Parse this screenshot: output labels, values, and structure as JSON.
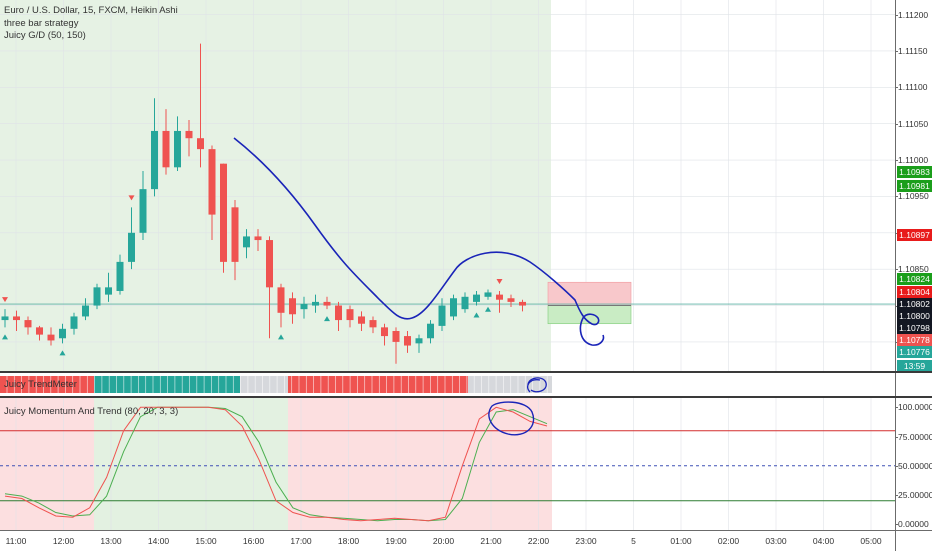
{
  "main_legend": {
    "symbol_line": "Euro / U.S. Dollar, 15, FXCM, Heikin Ashi",
    "study_1": "three bar strategy",
    "study_2": "Juicy G/D (50, 150)"
  },
  "trend_meter_label": "Juicy TrendMeter",
  "oscillator_label": "Juicy Momentum And Trend (80, 20, 3, 3)",
  "price_axis_ticks": [
    "1.11200",
    "1.11150",
    "1.11100",
    "1.11050",
    "1.11000",
    "1.10950",
    "1.10900",
    "1.10850",
    "1.10800",
    "1.10750"
  ],
  "price_tags": [
    {
      "text": "1.10983",
      "price": 1.10983,
      "color": "#1b9e1b"
    },
    {
      "text": "1.10981",
      "price": 1.10965,
      "color": "#1b9e1b"
    },
    {
      "text": "1.10897",
      "price": 1.10897,
      "color": "#e81b1b"
    },
    {
      "text": "1.10824",
      "price": 1.10836,
      "color": "#1b9e1b"
    },
    {
      "text": "1.10804",
      "price": 1.10818,
      "color": "#e81b1b"
    },
    {
      "text": "1.10802",
      "price": 1.10802,
      "color": "#131722"
    },
    {
      "text": "1.10800",
      "price": 1.10786,
      "color": "#131722"
    },
    {
      "text": "1.10798",
      "price": 1.10769,
      "color": "#131722"
    },
    {
      "text": "1.10778",
      "price": 1.10752,
      "color": "#ef5350"
    },
    {
      "text": "1.10776",
      "price": 1.10736,
      "color": "#26a69a"
    },
    {
      "text": "13:59",
      "price": 1.10717,
      "color": "#26a69a"
    },
    {
      "text": "1.10771",
      "price": 1.10697,
      "color": "#131722"
    }
  ],
  "osc_axis_ticks": [
    {
      "text": "100.00000",
      "v": 100
    },
    {
      "text": "75.00000",
      "v": 75
    },
    {
      "text": "50.00000",
      "v": 50
    },
    {
      "text": "25.00000",
      "v": 25
    },
    {
      "text": "0.00000",
      "v": 0
    }
  ],
  "time_axis_ticks": [
    "11:00",
    "12:00",
    "13:00",
    "14:00",
    "15:00",
    "16:00",
    "17:00",
    "18:00",
    "19:00",
    "20:00",
    "21:00",
    "22:00",
    "23:00",
    "5",
    "01:00",
    "02:00",
    "03:00",
    "04:00",
    "05:00"
  ],
  "colors": {
    "bull": "#26a69a",
    "bear": "#ef5350",
    "session_bg": "#e6f2e4",
    "osc_bear_bg": "#fcdfe0",
    "osc_bull_bg": "#e3f1e1",
    "drawing": "#1a24b8"
  },
  "chart_data": {
    "type": "candlestick",
    "title": "Euro / U.S. Dollar, 15, FXCM, Heikin Ashi",
    "ylim": [
      1.1071,
      1.1122
    ],
    "candles": [
      {
        "o": 1.1078,
        "c": 1.10785,
        "h": 1.10795,
        "l": 1.1077
      },
      {
        "o": 1.10785,
        "c": 1.1078,
        "h": 1.10793,
        "l": 1.10765
      },
      {
        "o": 1.1078,
        "c": 1.1077,
        "h": 1.10785,
        "l": 1.1076
      },
      {
        "o": 1.1077,
        "c": 1.1076,
        "h": 1.10772,
        "l": 1.10752
      },
      {
        "o": 1.1076,
        "c": 1.10752,
        "h": 1.1077,
        "l": 1.10745
      },
      {
        "o": 1.10755,
        "c": 1.10768,
        "h": 1.10775,
        "l": 1.10748
      },
      {
        "o": 1.10768,
        "c": 1.10785,
        "h": 1.1079,
        "l": 1.1076
      },
      {
        "o": 1.10785,
        "c": 1.108,
        "h": 1.1081,
        "l": 1.1078
      },
      {
        "o": 1.108,
        "c": 1.10825,
        "h": 1.1083,
        "l": 1.10795
      },
      {
        "o": 1.10815,
        "c": 1.10825,
        "h": 1.10845,
        "l": 1.10805
      },
      {
        "o": 1.1082,
        "c": 1.1086,
        "h": 1.1087,
        "l": 1.10815
      },
      {
        "o": 1.1086,
        "c": 1.109,
        "h": 1.10935,
        "l": 1.1085
      },
      {
        "o": 1.109,
        "c": 1.1096,
        "h": 1.10985,
        "l": 1.1089
      },
      {
        "o": 1.1096,
        "c": 1.1104,
        "h": 1.11085,
        "l": 1.1095
      },
      {
        "o": 1.1104,
        "c": 1.1099,
        "h": 1.1107,
        "l": 1.1098
      },
      {
        "o": 1.1099,
        "c": 1.1104,
        "h": 1.1106,
        "l": 1.10985
      },
      {
        "o": 1.1104,
        "c": 1.1103,
        "h": 1.11055,
        "l": 1.11005
      },
      {
        "o": 1.1103,
        "c": 1.11015,
        "h": 1.1116,
        "l": 1.1099
      },
      {
        "o": 1.11015,
        "c": 1.10925,
        "h": 1.1102,
        "l": 1.1089
      },
      {
        "o": 1.10995,
        "c": 1.1086,
        "h": 1.10995,
        "l": 1.10845
      },
      {
        "o": 1.10935,
        "c": 1.1086,
        "h": 1.10945,
        "l": 1.10835
      },
      {
        "o": 1.1088,
        "c": 1.10895,
        "h": 1.10905,
        "l": 1.10865
      },
      {
        "o": 1.10895,
        "c": 1.1089,
        "h": 1.10905,
        "l": 1.10875
      },
      {
        "o": 1.1089,
        "c": 1.10825,
        "h": 1.10895,
        "l": 1.10755
      },
      {
        "o": 1.10825,
        "c": 1.1079,
        "h": 1.1083,
        "l": 1.1077
      },
      {
        "o": 1.1081,
        "c": 1.10788,
        "h": 1.10818,
        "l": 1.10775
      },
      {
        "o": 1.10795,
        "c": 1.10802,
        "h": 1.10812,
        "l": 1.10782
      },
      {
        "o": 1.108,
        "c": 1.10805,
        "h": 1.10815,
        "l": 1.1079
      },
      {
        "o": 1.10805,
        "c": 1.108,
        "h": 1.10812,
        "l": 1.10795
      },
      {
        "o": 1.108,
        "c": 1.1078,
        "h": 1.10805,
        "l": 1.10765
      },
      {
        "o": 1.10795,
        "c": 1.1078,
        "h": 1.108,
        "l": 1.1077
      },
      {
        "o": 1.10785,
        "c": 1.10775,
        "h": 1.10792,
        "l": 1.10765
      },
      {
        "o": 1.1078,
        "c": 1.1077,
        "h": 1.10785,
        "l": 1.10762
      },
      {
        "o": 1.1077,
        "c": 1.10758,
        "h": 1.10775,
        "l": 1.10745
      },
      {
        "o": 1.10765,
        "c": 1.1075,
        "h": 1.1077,
        "l": 1.1072
      },
      {
        "o": 1.10758,
        "c": 1.10745,
        "h": 1.10765,
        "l": 1.10735
      },
      {
        "o": 1.10748,
        "c": 1.10755,
        "h": 1.1076,
        "l": 1.10735
      },
      {
        "o": 1.10755,
        "c": 1.10775,
        "h": 1.1078,
        "l": 1.10748
      },
      {
        "o": 1.10772,
        "c": 1.108,
        "h": 1.1081,
        "l": 1.10765
      },
      {
        "o": 1.10785,
        "c": 1.1081,
        "h": 1.10815,
        "l": 1.1078
      },
      {
        "o": 1.10795,
        "c": 1.10812,
        "h": 1.10818,
        "l": 1.1079
      },
      {
        "o": 1.10805,
        "c": 1.10815,
        "h": 1.1082,
        "l": 1.108
      },
      {
        "o": 1.10812,
        "c": 1.10818,
        "h": 1.10822,
        "l": 1.10808
      },
      {
        "o": 1.10815,
        "c": 1.10808,
        "h": 1.1082,
        "l": 1.1079
      },
      {
        "o": 1.1081,
        "c": 1.10805,
        "h": 1.10815,
        "l": 1.10798
      },
      {
        "o": 1.10805,
        "c": 1.108,
        "h": 1.10808,
        "l": 1.10792
      }
    ],
    "signals_up": [
      0,
      5,
      24,
      28,
      41,
      42
    ],
    "signals_down": [
      0,
      11,
      43
    ],
    "horizontal_line_price": 1.10802,
    "position_tool": {
      "entry": 1.108,
      "target_top": 1.10832,
      "stop_bottom": 1.10775
    },
    "oscillator": {
      "ylim": [
        -5,
        108
      ],
      "levels": [
        80,
        50,
        20
      ],
      "line_a": [
        24,
        22,
        14,
        7,
        6,
        14,
        40,
        80,
        100,
        100,
        100,
        100,
        100,
        98,
        84,
        55,
        20,
        10,
        6,
        6,
        4,
        3,
        4,
        5,
        4,
        3,
        6,
        50,
        90,
        100,
        96,
        88,
        84
      ],
      "line_b": [
        26,
        24,
        18,
        10,
        7,
        8,
        24,
        62,
        92,
        100,
        100,
        100,
        100,
        99,
        92,
        70,
        36,
        14,
        8,
        6,
        5,
        4,
        3,
        4,
        4,
        3,
        4,
        22,
        70,
        96,
        98,
        92,
        86
      ]
    }
  }
}
